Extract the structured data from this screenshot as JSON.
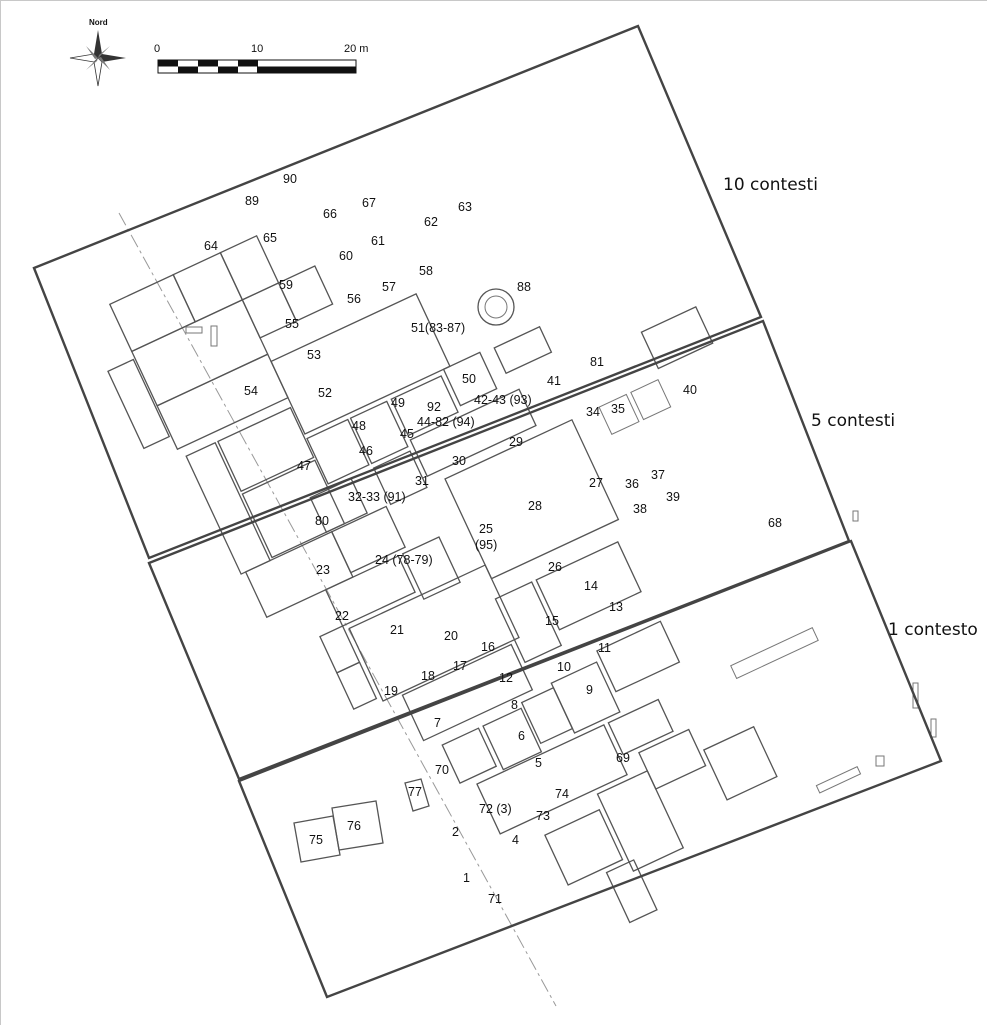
{
  "north_arrow": {
    "label": "Nord"
  },
  "scale_bar": {
    "ticks": [
      "0",
      "10",
      "20 m"
    ]
  },
  "zones": [
    {
      "label": "10 contesti"
    },
    {
      "label": "5 contesti"
    },
    {
      "label": "1 contesto"
    },
    {
      "label": ""
    }
  ],
  "rooms": [
    "1",
    "2",
    "4",
    "5",
    "6",
    "7",
    "8",
    "9",
    "10",
    "11",
    "12",
    "13",
    "14",
    "15",
    "16",
    "17",
    "18",
    "19",
    "20",
    "21",
    "22",
    "23",
    "24 (78-79)",
    "25",
    "(95)",
    "26",
    "27",
    "28",
    "29",
    "30",
    "31",
    "32-33 (91)",
    "34",
    "35",
    "36",
    "37",
    "38",
    "39",
    "40",
    "41",
    "42-43 (93)",
    "44-82 (94)",
    "45",
    "46",
    "47",
    "48",
    "49",
    "50",
    "51(83-87)",
    "52",
    "53",
    "54",
    "55",
    "56",
    "57",
    "58",
    "59",
    "60",
    "61",
    "62",
    "63",
    "64",
    "65",
    "66",
    "67",
    "68",
    "69",
    "70",
    "71",
    "72 (3)",
    "73",
    "74",
    "75",
    "76",
    "77",
    "80",
    "81",
    "88",
    "89",
    "90",
    "92"
  ]
}
